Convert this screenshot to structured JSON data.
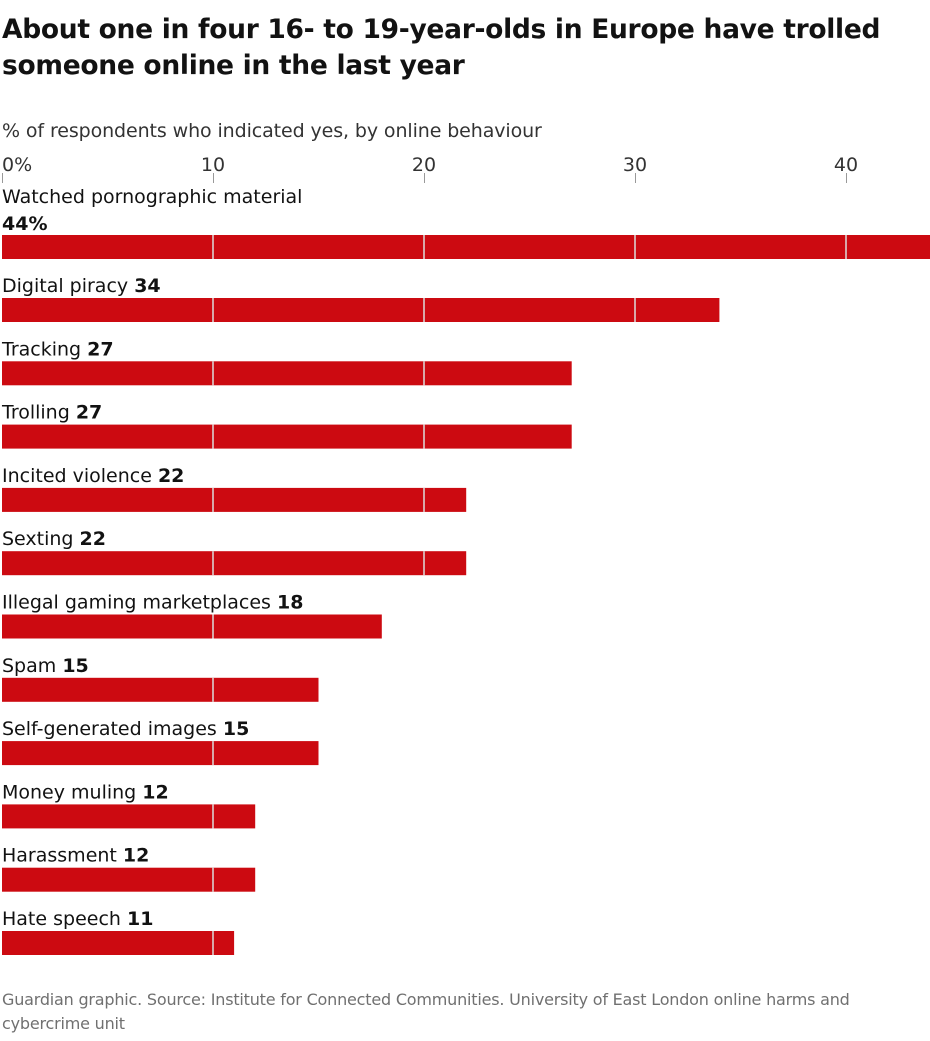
{
  "title": "About one in four 16- to 19-year-olds in Europe have trolled someone online in the last year",
  "subtitle": "% of respondents who indicated yes, by online behaviour",
  "footer": "Guardian graphic. Source: Institute for Connected Communities. University of East London online harms and cybercrime unit",
  "colors": {
    "bar": "#cc0a11",
    "gridline": "#dcdcdc",
    "text": "#121212"
  },
  "chart_data": {
    "type": "bar",
    "orientation": "horizontal",
    "xlim": [
      0,
      44
    ],
    "ticks": [
      0,
      10,
      20,
      30,
      40
    ],
    "tick_labels": [
      "0%",
      "10",
      "20",
      "30",
      "40"
    ],
    "grid": true,
    "categories": [
      "Watched pornographic material",
      "Digital piracy",
      "Tracking",
      "Trolling",
      "Incited violence",
      "Sexting",
      "Illegal gaming marketplaces",
      "Spam",
      "Self-generated images",
      "Money muling",
      "Harassment",
      "Hate speech"
    ],
    "values": [
      44,
      34,
      27,
      27,
      22,
      22,
      18,
      15,
      15,
      12,
      12,
      11
    ],
    "value_labels": [
      "44%",
      "34",
      "27",
      "27",
      "22",
      "22",
      "18",
      "15",
      "15",
      "12",
      "12",
      "11"
    ]
  }
}
